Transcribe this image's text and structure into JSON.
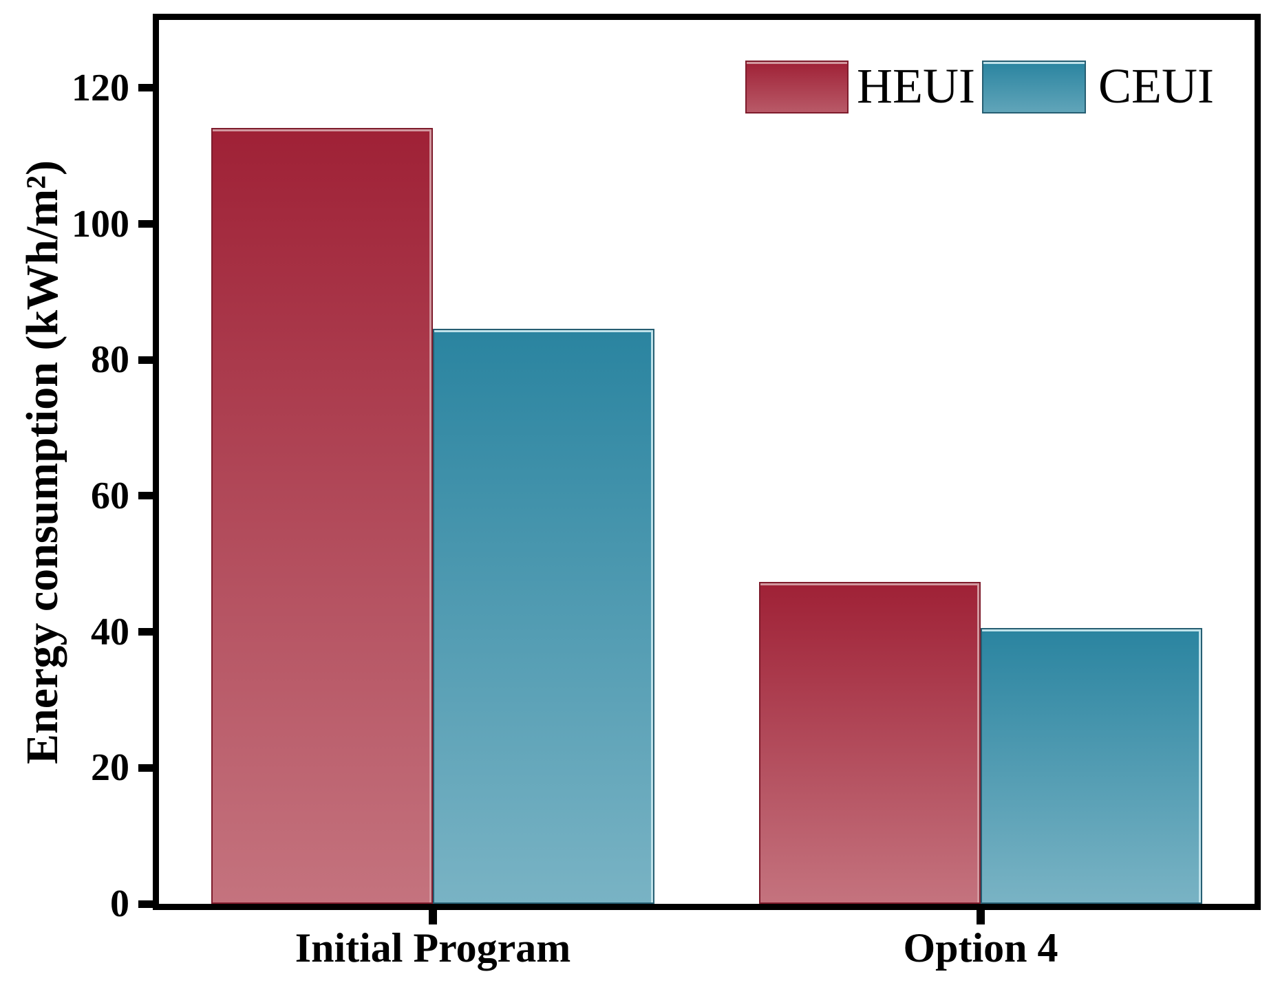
{
  "chart_data": {
    "type": "bar",
    "title": "",
    "categories": [
      "Initial Program",
      "Option 4"
    ],
    "series": [
      {
        "name": "HEUI",
        "values": [
          114.1,
          47.3
        ],
        "color_top": "#9f2136",
        "color_bottom": "#c4737e",
        "edge_dark": "#7e1c2c",
        "edge_light": "#d2989f"
      },
      {
        "name": "CEUI",
        "values": [
          84.6,
          40.6
        ],
        "color_top": "#2a84a0",
        "color_bottom": "#79b3c4",
        "edge_dark": "#265e72",
        "edge_light": "#bfe2ea"
      }
    ],
    "xlabel": "",
    "ylabel": "Energy consumption (kWh/m²)",
    "ylim": [
      0,
      130
    ],
    "yticks": [
      0,
      20,
      40,
      60,
      80,
      100,
      120
    ],
    "grid": false,
    "legend_position": "top-right",
    "axis_color": "#000000",
    "background": "#ffffff"
  }
}
